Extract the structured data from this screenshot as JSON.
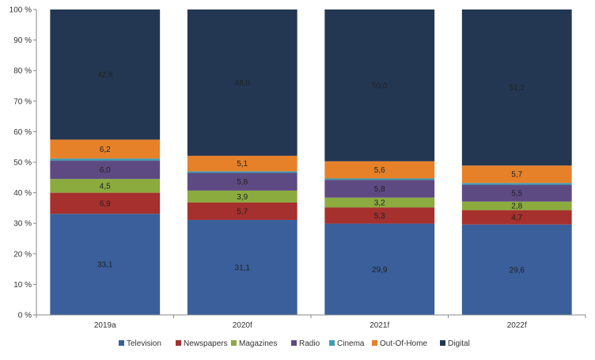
{
  "chart_data": {
    "type": "bar",
    "stacked": true,
    "percent_stacked": true,
    "title": "",
    "xlabel": "",
    "ylabel": "",
    "ylim": [
      0,
      100
    ],
    "y_ticks": [
      "0 %",
      "10 %",
      "20 %",
      "30 %",
      "40 %",
      "50 %",
      "60 %",
      "70 %",
      "80 %",
      "90 %",
      "100 %"
    ],
    "grid": false,
    "legend_position": "bottom",
    "categories": [
      "2019a",
      "2020f",
      "2021f",
      "2022f"
    ],
    "series": [
      {
        "name": "Television",
        "color": "#3A5F9B",
        "values": [
          33.1,
          31.1,
          29.9,
          29.6
        ],
        "labels": [
          "33,1",
          "31,1",
          "29,9",
          "29,6"
        ]
      },
      {
        "name": "Newspapers",
        "color": "#A5302E",
        "values": [
          6.9,
          5.7,
          5.3,
          4.7
        ],
        "labels": [
          "6,9",
          "5,7",
          "5,3",
          "4,7"
        ]
      },
      {
        "name": "Magazines",
        "color": "#8BAB3F",
        "values": [
          4.5,
          3.9,
          3.2,
          2.8
        ],
        "labels": [
          "4,5",
          "3,9",
          "3,2",
          "2,8"
        ]
      },
      {
        "name": "Radio",
        "color": "#5E4A82",
        "values": [
          6.0,
          5.8,
          5.8,
          5.5
        ],
        "labels": [
          "6,0",
          "5,8",
          "5,8",
          "5,5"
        ]
      },
      {
        "name": "Cinema",
        "color": "#3E9CB5",
        "values": [
          0.7,
          0.5,
          0.5,
          0.6
        ],
        "labels": [
          "",
          "",
          "",
          ""
        ]
      },
      {
        "name": "Out-Of-Home",
        "color": "#E6812A",
        "values": [
          6.2,
          5.1,
          5.6,
          5.7
        ],
        "labels": [
          "6,2",
          "5,1",
          "5,6",
          "5,7"
        ]
      },
      {
        "name": "Digital",
        "color": "#243752",
        "values": [
          42.8,
          48.0,
          50.0,
          51.2
        ],
        "labels": [
          "42,8",
          "48,0",
          "50,0",
          "51,2"
        ]
      }
    ]
  }
}
